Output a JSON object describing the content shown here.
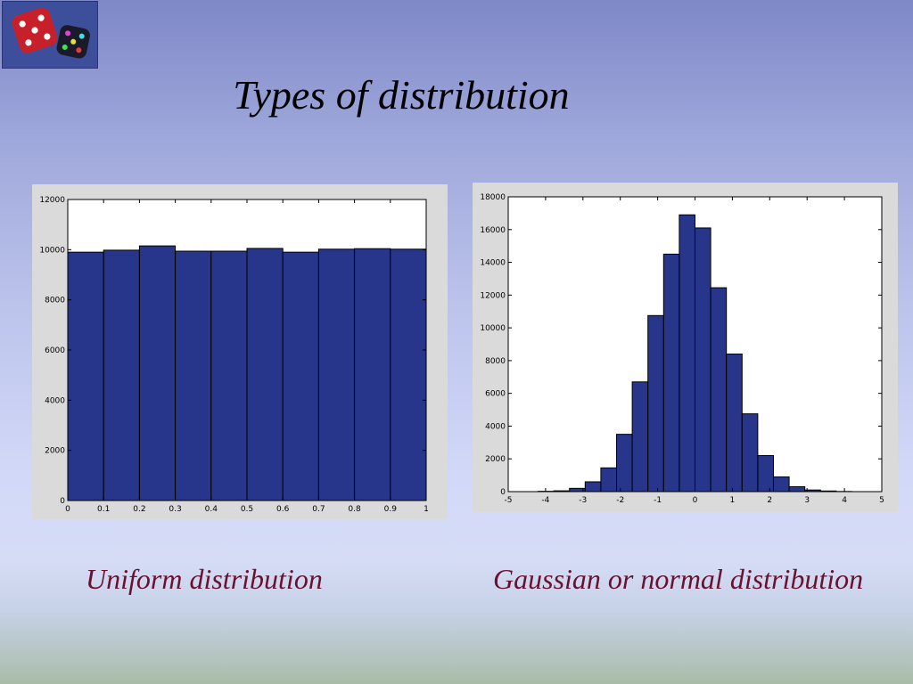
{
  "slide": {
    "title": "Types of distribution"
  },
  "logo": {
    "icon": "dice-icon",
    "die1_color": "#c8202a",
    "die2_color": "#1a1a2a"
  },
  "captions": {
    "uniform": "Uniform distribution",
    "gaussian": "Gaussian or normal distribution"
  },
  "bar_color": "#27368a",
  "chart_data": [
    {
      "type": "bar",
      "title": "",
      "xlabel": "",
      "ylabel": "",
      "bin_edges": [
        0,
        0.1,
        0.2,
        0.3,
        0.4,
        0.5,
        0.6,
        0.7,
        0.8,
        0.9,
        1
      ],
      "values": [
        9900,
        9980,
        10150,
        9940,
        9940,
        10050,
        9900,
        10020,
        10040,
        10020
      ],
      "xlim": [
        0,
        1
      ],
      "ylim": [
        0,
        12000
      ],
      "xticks": [
        0,
        0.1,
        0.2,
        0.3,
        0.4,
        0.5,
        0.6,
        0.7,
        0.8,
        0.9,
        1
      ],
      "xtick_labels": [
        "0",
        "0.1",
        "0.2",
        "0.3",
        "0.4",
        "0.5",
        "0.6",
        "0.7",
        "0.8",
        "0.9",
        "1"
      ],
      "yticks": [
        0,
        2000,
        4000,
        6000,
        8000,
        10000,
        12000
      ],
      "ytick_labels": [
        "0",
        "2000",
        "4000",
        "6000",
        "8000",
        "10000",
        "12000"
      ],
      "grid": false
    },
    {
      "type": "bar",
      "title": "",
      "xlabel": "",
      "ylabel": "",
      "bin_edges": [
        -4.2,
        -3.78,
        -3.36,
        -2.94,
        -2.52,
        -2.1,
        -1.68,
        -1.26,
        -0.84,
        -0.42,
        0,
        0.42,
        0.84,
        1.26,
        1.68,
        2.1,
        2.52,
        2.94,
        3.36,
        3.78,
        4.2
      ],
      "values": [
        20,
        50,
        200,
        600,
        1450,
        3500,
        6700,
        10750,
        14500,
        16900,
        16100,
        12450,
        8400,
        4750,
        2200,
        900,
        300,
        100,
        40,
        10
      ],
      "xlim": [
        -5,
        5
      ],
      "ylim": [
        0,
        18000
      ],
      "xticks": [
        -5,
        -4,
        -3,
        -2,
        -1,
        0,
        1,
        2,
        3,
        4,
        5
      ],
      "xtick_labels": [
        "-5",
        "-4",
        "-3",
        "-2",
        "-1",
        "0",
        "1",
        "2",
        "3",
        "4",
        "5"
      ],
      "yticks": [
        0,
        2000,
        4000,
        6000,
        8000,
        10000,
        12000,
        14000,
        16000,
        18000
      ],
      "ytick_labels": [
        "0",
        "2000",
        "4000",
        "6000",
        "8000",
        "10000",
        "12000",
        "14000",
        "16000",
        "18000"
      ],
      "grid": false
    }
  ]
}
